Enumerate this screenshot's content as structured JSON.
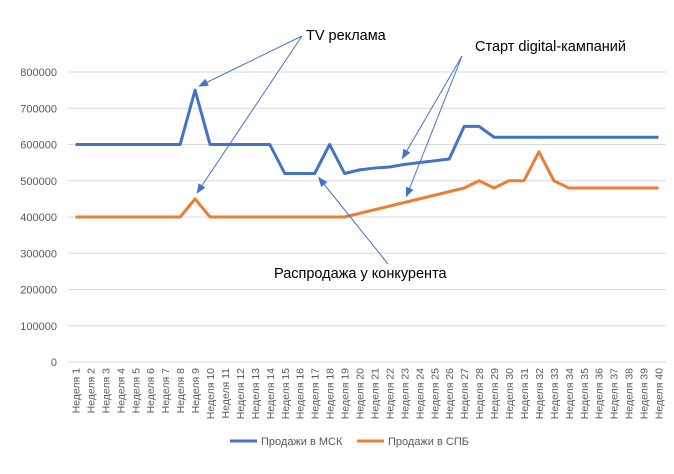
{
  "chart_data": {
    "type": "line",
    "ylim": [
      0,
      800000
    ],
    "y_ticks": [
      "0",
      "100000",
      "200000",
      "300000",
      "400000",
      "500000",
      "600000",
      "700000",
      "800000"
    ],
    "grid": true,
    "legend_position": "bottom",
    "categories": [
      "Неделя 1",
      "Неделя 2",
      "Неделя 3",
      "Неделя 4",
      "Неделя 5",
      "Неделя 6",
      "Неделя 7",
      "Неделя 8",
      "Неделя 9",
      "Неделя 10",
      "Неделя 11",
      "Неделя 12",
      "Неделя 13",
      "Неделя 14",
      "Неделя 15",
      "Неделя 16",
      "Неделя 17",
      "Неделя 18",
      "Неделя 19",
      "Неделя 20",
      "Неделя 21",
      "Неделя 22",
      "Неделя 23",
      "Неделя 24",
      "Неделя 25",
      "Неделя 26",
      "Неделя 27",
      "Неделя 28",
      "Неделя 29",
      "Неделя 30",
      "Неделя 31",
      "Неделя 32",
      "Неделя 33",
      "Неделя 34",
      "Неделя 35",
      "Неделя 36",
      "Неделя 37",
      "Неделя 38",
      "Неделя 39",
      "Неделя 40"
    ],
    "series": [
      {
        "name": "Продажи в МСК",
        "color": "#4472C4",
        "values": [
          600000,
          600000,
          600000,
          600000,
          600000,
          600000,
          600000,
          600000,
          750000,
          600000,
          600000,
          600000,
          600000,
          600000,
          520000,
          520000,
          520000,
          600000,
          520000,
          530000,
          535000,
          538000,
          545000,
          550000,
          555000,
          560000,
          650000,
          650000,
          620000,
          620000,
          620000,
          620000,
          620000,
          620000,
          620000,
          620000,
          620000,
          620000,
          620000,
          620000
        ]
      },
      {
        "name": "Продажи в СПБ",
        "color": "#ED7D31",
        "values": [
          400000,
          400000,
          400000,
          400000,
          400000,
          400000,
          400000,
          400000,
          450000,
          400000,
          400000,
          400000,
          400000,
          400000,
          400000,
          400000,
          400000,
          400000,
          400000,
          410000,
          420000,
          430000,
          440000,
          450000,
          460000,
          470000,
          480000,
          500000,
          480000,
          500000,
          500000,
          580000,
          500000,
          480000,
          480000,
          480000,
          480000,
          480000,
          480000,
          480000
        ]
      }
    ],
    "annotations": [
      {
        "text": "TV реклама",
        "targets": [
          {
            "series": 0,
            "index": 8
          },
          {
            "series": 1,
            "index": 8
          }
        ]
      },
      {
        "text": "Старт digital-кампаний",
        "targets": [
          {
            "series": 0,
            "index": 22
          },
          {
            "series": 1,
            "index": 22
          }
        ]
      },
      {
        "text": "Распродажа у конкурента",
        "targets": [
          {
            "series": 0,
            "index": 16
          }
        ]
      }
    ],
    "annotation_color": "#4472C4"
  }
}
